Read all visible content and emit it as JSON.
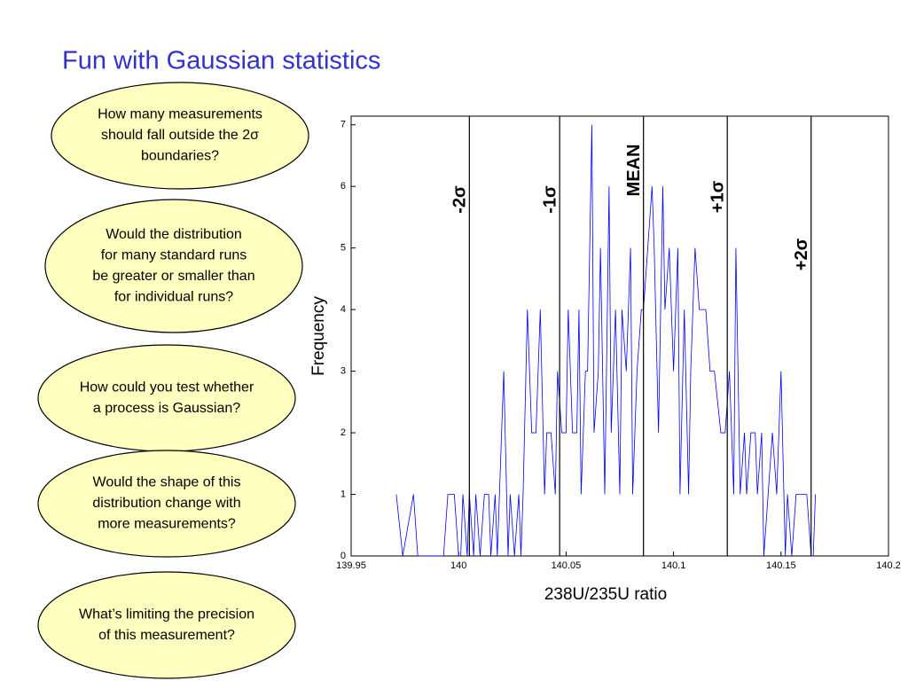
{
  "title": "Fun with Gaussian statistics",
  "questions": [
    [
      "How many measurements",
      "should fall outside the 2σ",
      "boundaries?"
    ],
    [
      "Would the distribution",
      "for many standard runs",
      "be greater or smaller than",
      "for individual runs?"
    ],
    [
      "How could you test whether",
      "a process is Gaussian?"
    ],
    [
      "Would the shape of this",
      "distribution change with",
      "more measurements?"
    ],
    [
      "What’s limiting the precision",
      "of this measurement?"
    ]
  ],
  "chart_data": {
    "type": "line",
    "x_label": "238U/235U ratio",
    "y_label": "Frequency",
    "x": [
      139.971,
      139.974,
      139.979,
      139.981,
      139.993,
      139.995,
      139.998,
      140.0,
      140.001,
      140.002,
      140.004,
      140.005,
      140.007,
      140.008,
      140.01,
      140.012,
      140.014,
      140.015,
      140.017,
      140.018,
      140.021,
      140.023,
      140.024,
      140.026,
      140.028,
      140.029,
      140.03,
      140.032,
      140.034,
      140.036,
      140.038,
      140.04,
      140.041,
      140.043,
      140.045,
      140.046,
      140.048,
      140.05,
      140.051,
      140.053,
      140.055,
      140.056,
      140.057,
      140.059,
      140.06,
      140.062,
      140.063,
      140.065,
      140.066,
      140.068,
      140.07,
      140.071,
      140.073,
      140.075,
      140.076,
      140.078,
      140.08,
      140.081,
      140.083,
      140.085,
      140.086,
      140.088,
      140.09,
      140.091,
      140.093,
      140.095,
      140.096,
      140.098,
      140.1,
      140.102,
      140.103,
      140.105,
      140.107,
      140.108,
      140.11,
      140.112,
      140.114,
      140.115,
      140.117,
      140.119,
      140.122,
      140.124,
      140.126,
      140.128,
      140.129,
      140.131,
      140.133,
      140.134,
      140.136,
      140.138,
      140.139,
      140.141,
      140.142,
      140.144,
      140.146,
      140.148,
      140.15,
      140.152,
      140.153,
      140.155,
      140.157,
      140.158,
      140.161,
      140.162,
      140.164,
      140.165,
      140.166
    ],
    "values": [
      1,
      0,
      1,
      0,
      0,
      1,
      1,
      0,
      0,
      1,
      0,
      1,
      0,
      1,
      0,
      1,
      1,
      0,
      1,
      0,
      3,
      0,
      1,
      0,
      1,
      0,
      1,
      4,
      2,
      2,
      4,
      1,
      2,
      2,
      1,
      3,
      2,
      2,
      4,
      2,
      2,
      4,
      1,
      3,
      3,
      7,
      2,
      3,
      5,
      1,
      6,
      2,
      4,
      1,
      4,
      3,
      5,
      1,
      3,
      4,
      4,
      5,
      6,
      5,
      2,
      6,
      4,
      5,
      3,
      5,
      1,
      4,
      1,
      3,
      5,
      4,
      4,
      4,
      3,
      3,
      2,
      2,
      3,
      1,
      5,
      1,
      2,
      1,
      2,
      2,
      1,
      2,
      0,
      1,
      2,
      1,
      3,
      0,
      1,
      0,
      1,
      1,
      1,
      1,
      0,
      0,
      1
    ],
    "color": "#0000ff",
    "xlim": [
      139.95,
      140.2
    ],
    "ylim": [
      0,
      7.14
    ],
    "xticks": [
      139.95,
      140,
      140.05,
      140.1,
      140.15,
      140.2
    ],
    "yticks": [
      0,
      1,
      2,
      3,
      4,
      5,
      6,
      7
    ],
    "vlines": [
      {
        "label": "-2σ",
        "x": 140.005
      },
      {
        "label": "-1σ",
        "x": 140.047
      },
      {
        "label": "MEAN",
        "x": 140.086
      },
      {
        "label": "+1σ",
        "x": 140.125
      },
      {
        "label": "+2σ",
        "x": 140.164
      }
    ]
  }
}
